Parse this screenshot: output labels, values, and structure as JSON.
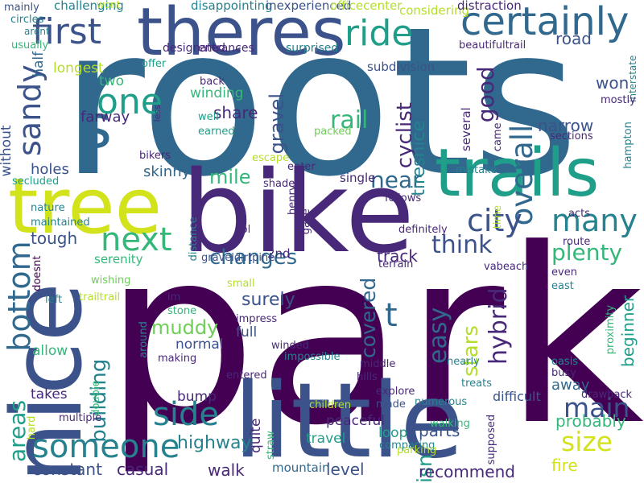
{
  "cloud": {
    "palette": [
      "#440154",
      "#482878",
      "#3b528b",
      "#31688e",
      "#26828e",
      "#1f9e89",
      "#35b779",
      "#6ece58",
      "#b5de2b",
      "#fde725"
    ],
    "words": [
      {
        "text": "park",
        "color": "#440154"
      },
      {
        "text": "roots",
        "color": "#31688e"
      },
      {
        "text": "bike",
        "color": "#482878"
      },
      {
        "text": "little",
        "color": "#3b528b"
      },
      {
        "text": "nice",
        "color": "#3b528b"
      },
      {
        "text": "tree",
        "color": "#d2e21b"
      },
      {
        "text": "theres",
        "color": "#3b528b"
      },
      {
        "text": "trails",
        "color": "#1f9e89"
      },
      {
        "text": "s",
        "color": "#31688e"
      },
      {
        "text": "certainly",
        "color": "#31688e"
      },
      {
        "text": "first",
        "color": "#3b528b"
      },
      {
        "text": "ride",
        "color": "#1f9e89"
      },
      {
        "text": "sandy",
        "color": "#3b528b"
      },
      {
        "text": "one",
        "color": "#1f9e89"
      },
      {
        "text": "overall",
        "color": "#31688e"
      },
      {
        "text": "many",
        "color": "#26828e"
      },
      {
        "text": "city",
        "color": "#3b528b"
      },
      {
        "text": "next",
        "color": "#35b779"
      },
      {
        "text": "someone",
        "color": "#26828e"
      },
      {
        "text": "bottom",
        "color": "#31688e"
      },
      {
        "text": "side",
        "color": "#26828e"
      },
      {
        "text": "main",
        "color": "#3b528b"
      },
      {
        "text": "size",
        "color": "#d2e21b"
      },
      {
        "text": "easy",
        "color": "#31688e"
      },
      {
        "text": "hybrid",
        "color": "#482878"
      },
      {
        "text": "plenty",
        "color": "#35b779"
      },
      {
        "text": "think",
        "color": "#3b528b"
      },
      {
        "text": "near",
        "color": "#31688e"
      },
      {
        "text": "t",
        "color": "#31688e"
      },
      {
        "text": "building",
        "color": "#26828e"
      },
      {
        "text": "areas",
        "color": "#1f9e89"
      },
      {
        "text": "covered",
        "color": "#31688e"
      },
      {
        "text": "stars",
        "color": "#b5de2b"
      },
      {
        "text": "rail",
        "color": "#35b779"
      },
      {
        "text": "good",
        "color": "#482878"
      },
      {
        "text": "cyclist",
        "color": "#482878"
      },
      {
        "text": "changes",
        "color": "#31688e"
      },
      {
        "text": "mile",
        "color": "#35b779"
      },
      {
        "text": "share",
        "color": "#482878"
      },
      {
        "text": "muddy",
        "color": "#6ece58"
      },
      {
        "text": "track",
        "color": "#482878"
      },
      {
        "text": "tough",
        "color": "#3b528b"
      },
      {
        "text": "holes",
        "color": "#3b528b"
      },
      {
        "text": "narrow",
        "color": "#3b528b"
      },
      {
        "text": "won",
        "color": "#3b528b"
      },
      {
        "text": "road",
        "color": "#3b528b"
      },
      {
        "text": "beginner",
        "color": "#1f9e89"
      },
      {
        "text": "gravel",
        "color": "#3b528b"
      },
      {
        "text": "tiresnice",
        "color": "#26828e"
      },
      {
        "text": "surely",
        "color": "#3b528b"
      },
      {
        "text": "single",
        "color": "#482878"
      },
      {
        "text": "highway",
        "color": "#26828e"
      },
      {
        "text": "walk",
        "color": "#482878"
      },
      {
        "text": "level",
        "color": "#3b528b"
      },
      {
        "text": "casual",
        "color": "#482878"
      },
      {
        "text": "constant",
        "color": "#3b528b"
      },
      {
        "text": "mountain",
        "color": "#31688e"
      },
      {
        "text": "parts",
        "color": "#3b528b"
      },
      {
        "text": "isn",
        "color": "#1f9e89"
      },
      {
        "text": "fire",
        "color": "#d2e21b"
      },
      {
        "text": "probably",
        "color": "#35b779"
      },
      {
        "text": "difficult",
        "color": "#3b528b"
      },
      {
        "text": "away",
        "color": "#31688e"
      },
      {
        "text": "recommend",
        "color": "#482878"
      },
      {
        "text": "travel",
        "color": "#1f9e89"
      },
      {
        "text": "peaceful",
        "color": "#482878"
      },
      {
        "text": "loop",
        "color": "#1f9e89"
      },
      {
        "text": "quite",
        "color": "#482878"
      },
      {
        "text": "full",
        "color": "#3b528b"
      },
      {
        "text": "normal",
        "color": "#3b528b"
      },
      {
        "text": "bump",
        "color": "#482878"
      },
      {
        "text": "allow",
        "color": "#35b779"
      },
      {
        "text": "takes",
        "color": "#482878"
      },
      {
        "text": "skinny",
        "color": "#31688e"
      },
      {
        "text": "farway",
        "color": "#482878"
      },
      {
        "text": "two",
        "color": "#35b779"
      },
      {
        "text": "winding",
        "color": "#35b779"
      },
      {
        "text": "serenity",
        "color": "#35b779"
      },
      {
        "text": "2nd",
        "color": "#482878"
      },
      {
        "text": "subdivision",
        "color": "#3b528b"
      },
      {
        "text": "considering",
        "color": "#b5de2b"
      },
      {
        "text": "several",
        "color": "#482878"
      },
      {
        "text": "longest",
        "color": "#b5de2b"
      },
      {
        "text": "half",
        "color": "#31688e"
      },
      {
        "text": "without",
        "color": "#3b528b"
      },
      {
        "text": "challenging",
        "color": "#26828e"
      },
      {
        "text": "disappointing",
        "color": "#26828e"
      },
      {
        "text": "inexperienced",
        "color": "#3b528b"
      },
      {
        "text": "officecenter",
        "color": "#b5de2b"
      },
      {
        "text": "distraction",
        "color": "#482878"
      },
      {
        "text": "designated",
        "color": "#482878"
      },
      {
        "text": "entrances",
        "color": "#482878"
      },
      {
        "text": "surprised",
        "color": "#26828e"
      },
      {
        "text": "beautifultrail",
        "color": "#482878"
      },
      {
        "text": "interstate",
        "color": "#26828e"
      },
      {
        "text": "usually",
        "color": "#35b779"
      },
      {
        "text": "arent",
        "color": "#26828e"
      },
      {
        "text": "circles",
        "color": "#26828e"
      },
      {
        "text": "mainly",
        "color": "#3b528b"
      },
      {
        "text": "offer",
        "color": "#1f9e89"
      },
      {
        "text": "back",
        "color": "#482878"
      },
      {
        "text": "well",
        "color": "#1f9e89"
      },
      {
        "text": "earned",
        "color": "#1f9e89"
      },
      {
        "text": "less",
        "color": "#482878"
      },
      {
        "text": "packed",
        "color": "#6ece58"
      },
      {
        "text": "came",
        "color": "#482878"
      },
      {
        "text": "sections",
        "color": "#482878"
      },
      {
        "text": "mostly",
        "color": "#482878"
      },
      {
        "text": "hampton",
        "color": "#26828e"
      },
      {
        "text": "bikers",
        "color": "#482878"
      },
      {
        "text": "escape",
        "color": "#b5de2b"
      },
      {
        "text": "enter",
        "color": "#482878"
      },
      {
        "text": "mistake",
        "color": "#26828e"
      },
      {
        "text": "shade",
        "color": "#482878"
      },
      {
        "text": "follows",
        "color": "#482878"
      },
      {
        "text": "secluded",
        "color": "#1f9e89"
      },
      {
        "text": "nature",
        "color": "#26828e"
      },
      {
        "text": "maintained",
        "color": "#26828e"
      },
      {
        "text": "henry",
        "color": "#482878"
      },
      {
        "text": "acts",
        "color": "#482878"
      },
      {
        "text": "distance",
        "color": "#26828e"
      },
      {
        "text": "gave",
        "color": "#482878"
      },
      {
        "text": "definitely",
        "color": "#482878"
      },
      {
        "text": "lol",
        "color": "#482878"
      },
      {
        "text": "time",
        "color": "#b5de2b"
      },
      {
        "text": "route",
        "color": "#482878"
      },
      {
        "text": "graveldirtpine",
        "color": "#3b528b"
      },
      {
        "text": "terrain",
        "color": "#482878"
      },
      {
        "text": "vabeach",
        "color": "#482878"
      },
      {
        "text": "even",
        "color": "#482878"
      },
      {
        "text": "small",
        "color": "#b5de2b"
      },
      {
        "text": "wishing",
        "color": "#6ece58"
      },
      {
        "text": "east",
        "color": "#26828e"
      },
      {
        "text": "doesnt",
        "color": "#440154"
      },
      {
        "text": "left",
        "color": "#26828e"
      },
      {
        "text": "trailtrail",
        "color": "#b5de2b"
      },
      {
        "text": "im",
        "color": "#482878"
      },
      {
        "text": "stone",
        "color": "#35b779"
      },
      {
        "text": "impress",
        "color": "#482878"
      },
      {
        "text": "proximity",
        "color": "#35b779"
      },
      {
        "text": "making",
        "color": "#482878"
      },
      {
        "text": "around",
        "color": "#26828e"
      },
      {
        "text": "double",
        "color": "#35b779"
      },
      {
        "text": "impossible",
        "color": "#26828e"
      },
      {
        "text": "winded",
        "color": "#482878"
      },
      {
        "text": "entered",
        "color": "#482878"
      },
      {
        "text": "middle",
        "color": "#482878"
      },
      {
        "text": "nearly",
        "color": "#26828e"
      },
      {
        "text": "oasis",
        "color": "#26828e"
      },
      {
        "text": "busy",
        "color": "#482878"
      },
      {
        "text": "hills",
        "color": "#482878"
      },
      {
        "text": "treats",
        "color": "#26828e"
      },
      {
        "text": "explore",
        "color": "#482878"
      },
      {
        "text": "made",
        "color": "#3b528b"
      },
      {
        "text": "children",
        "color": "#b5de2b"
      },
      {
        "text": "numerous",
        "color": "#26828e"
      },
      {
        "text": "drawback",
        "color": "#482878"
      },
      {
        "text": "multiple",
        "color": "#482878"
      },
      {
        "text": "hard",
        "color": "#b5de2b"
      },
      {
        "text": "straw",
        "color": "#35b779"
      },
      {
        "text": "comparing",
        "color": "#26828e"
      },
      {
        "text": "parking",
        "color": "#b5de2b"
      },
      {
        "text": "walking",
        "color": "#35b779"
      },
      {
        "text": "supposed",
        "color": "#482878"
      },
      {
        "text": "wont",
        "color": "#b5de2b"
      },
      {
        "text": "cape",
        "color": "#26828e"
      },
      {
        "text": "dr",
        "color": "#b5de2b"
      }
    ]
  }
}
